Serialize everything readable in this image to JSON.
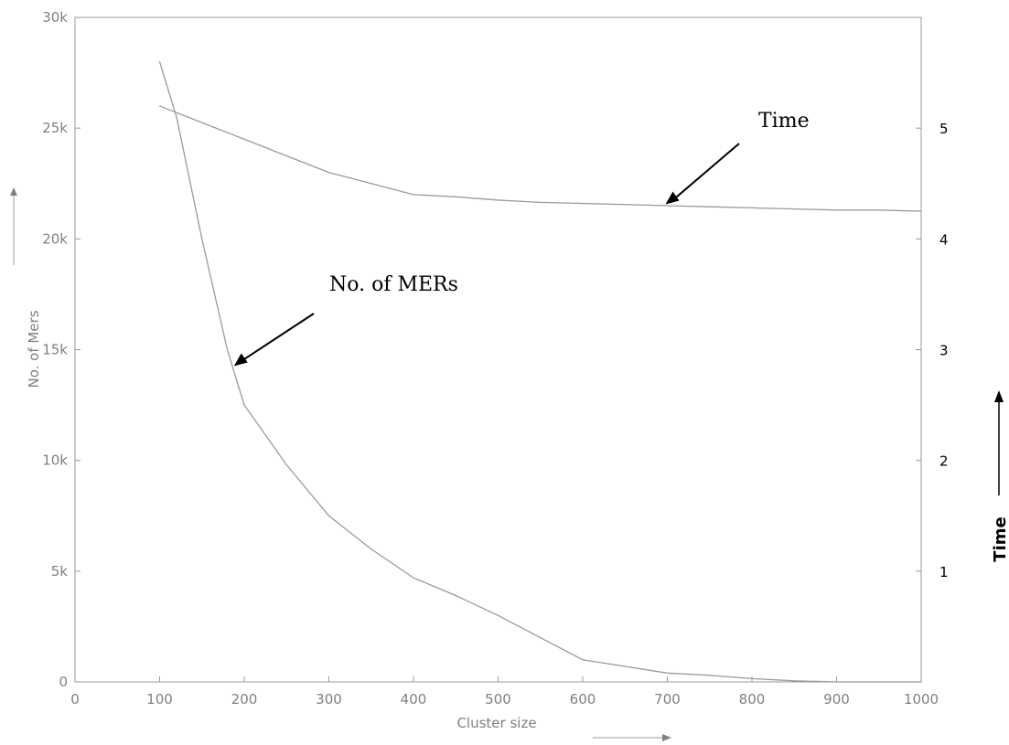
{
  "chart_data": {
    "type": "line",
    "title": "",
    "xlabel": "Cluster size",
    "ylabel": "No. of Mers",
    "y2label": "Time",
    "xlim": [
      0,
      1000
    ],
    "ylim": [
      0,
      30000
    ],
    "y2lim": [
      0,
      6
    ],
    "xticks": [
      0,
      100,
      200,
      300,
      400,
      500,
      600,
      700,
      800,
      900,
      1000
    ],
    "xtick_labels": [
      "0",
      "100",
      "200",
      "300",
      "400",
      "500",
      "600",
      "700",
      "800",
      "900",
      "1000"
    ],
    "yticks": [
      0,
      5000,
      10000,
      15000,
      20000,
      25000,
      30000
    ],
    "ytick_labels": [
      "0",
      "5k",
      "10k",
      "15k",
      "20k",
      "25k",
      "30k"
    ],
    "y2ticks": [
      1,
      2,
      3,
      4,
      5
    ],
    "y2tick_labels": [
      "1",
      "2",
      "3",
      "4",
      "5"
    ],
    "grid": false,
    "series": [
      {
        "axis": "left",
        "x": [
          100,
          120,
          150,
          180,
          200,
          250,
          300,
          350,
          400,
          450,
          500,
          550,
          600,
          650,
          700,
          750,
          800,
          850,
          900,
          950,
          1000
        ],
        "values": [
          28000,
          25500,
          20000,
          15000,
          12500,
          9800,
          7500,
          6000,
          4700,
          3900,
          3000,
          2000,
          1000,
          700,
          400,
          300,
          150,
          50,
          0,
          0,
          0
        ],
        "color": "#9a9a9a"
      },
      {
        "axis": "right",
        "x": [
          100,
          150,
          200,
          250,
          300,
          350,
          400,
          450,
          500,
          550,
          600,
          650,
          700,
          750,
          800,
          850,
          900,
          950,
          1000
        ],
        "values": [
          5.2,
          5.05,
          4.9,
          4.75,
          4.6,
          4.5,
          4.4,
          4.38,
          4.35,
          4.33,
          4.32,
          4.31,
          4.3,
          4.29,
          4.28,
          4.27,
          4.26,
          4.26,
          4.25
        ],
        "color": "#9a9a9a"
      }
    ],
    "annotations": [
      {
        "text": "Time",
        "x": 700,
        "y2": 4.32
      },
      {
        "text": "No. of MERs",
        "x": 190,
        "y": 14300
      }
    ]
  }
}
